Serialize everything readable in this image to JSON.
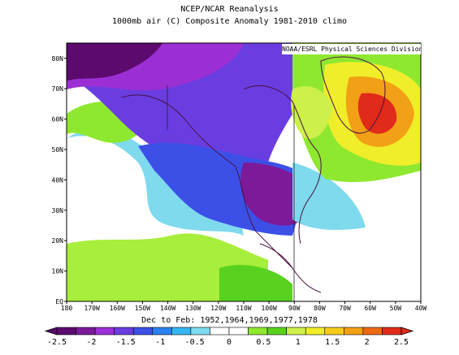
{
  "header": {
    "title": "NCEP/NCAR Reanalysis",
    "subtitle": "1000mb air (C) Composite Anomaly 1981-2010 climo"
  },
  "map": {
    "credit": "NOAA/ESRL Physical Sciences Division",
    "caption": "Dec to Feb: 1952,1964,1969,1977,1978",
    "lon_labels": [
      "180",
      "170W",
      "160W",
      "150W",
      "140W",
      "130W",
      "120W",
      "110W",
      "100W",
      "90W",
      "80W",
      "70W",
      "60W",
      "50W",
      "40W"
    ],
    "lat_labels": [
      "EQ",
      "10N",
      "20N",
      "30N",
      "40N",
      "50N",
      "60N",
      "70N",
      "80N"
    ]
  },
  "colorbar": {
    "labels": [
      "-2.5",
      "-2",
      "-1.5",
      "-1",
      "-0.5",
      "0",
      "0.5",
      "1",
      "1.5",
      "2",
      "2.5"
    ],
    "colors": [
      "#5c0a6e",
      "#7c1a9a",
      "#9b2fd4",
      "#6a3de0",
      "#3c50e8",
      "#2a80f0",
      "#35b6f0",
      "#7fdaee",
      "#ffffff",
      "#ffffff",
      "#8fe830",
      "#58d21e",
      "#cdf04a",
      "#f0ee2a",
      "#f5cc1c",
      "#f2a015",
      "#ee6a10",
      "#e02a1a"
    ]
  }
}
